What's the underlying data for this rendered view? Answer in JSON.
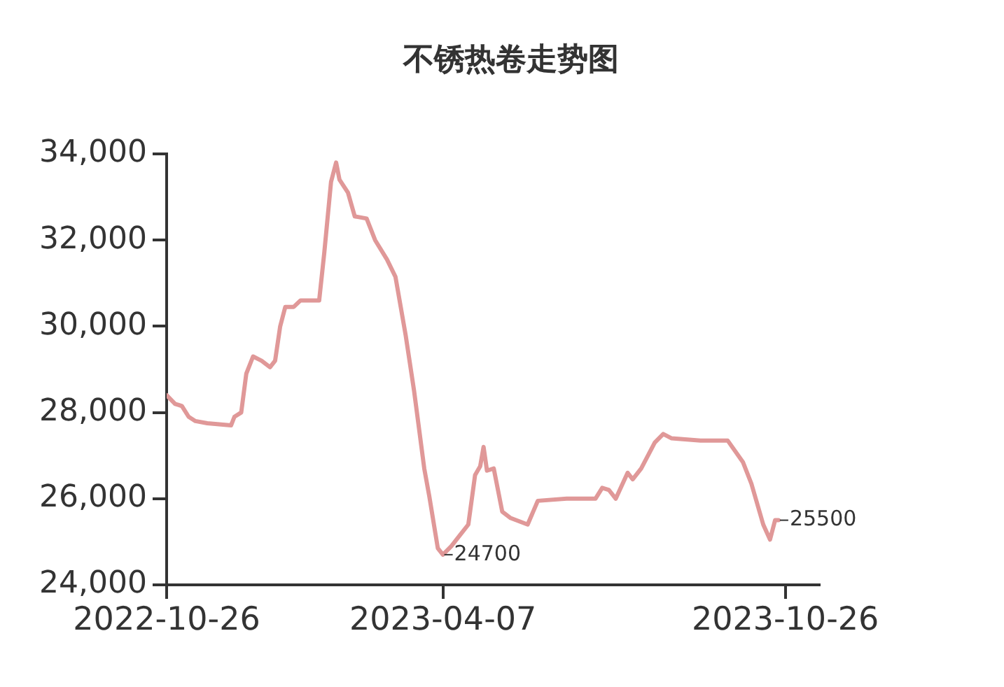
{
  "chart_data": {
    "type": "line",
    "title": "不锈热卷走势图",
    "x": [
      "2022-10-26",
      "2022-10-31",
      "2022-11-04",
      "2022-11-08",
      "2022-11-12",
      "2022-11-19",
      "2022-12-03",
      "2022-12-05",
      "2022-12-09",
      "2022-12-12",
      "2022-12-16",
      "2022-12-21",
      "2022-12-26",
      "2022-12-29",
      "2023-01-01",
      "2023-01-04",
      "2023-01-09",
      "2023-01-13",
      "2023-01-24",
      "2023-01-27",
      "2023-01-31",
      "2023-02-03",
      "2023-02-05",
      "2023-02-10",
      "2023-02-14",
      "2023-02-21",
      "2023-02-26",
      "2023-03-05",
      "2023-03-10",
      "2023-03-16",
      "2023-03-21",
      "2023-03-27",
      "2023-03-30",
      "2023-04-04",
      "2023-04-07",
      "2023-04-12",
      "2023-04-17",
      "2023-04-22",
      "2023-04-26",
      "2023-04-29",
      "2023-05-01",
      "2023-05-03",
      "2023-05-07",
      "2023-05-12",
      "2023-05-17",
      "2023-05-27",
      "2023-06-02",
      "2023-06-19",
      "2023-07-06",
      "2023-07-10",
      "2023-07-14",
      "2023-07-18",
      "2023-07-25",
      "2023-07-28",
      "2023-08-02",
      "2023-08-10",
      "2023-08-15",
      "2023-08-20",
      "2023-09-06",
      "2023-09-22",
      "2023-10-01",
      "2023-10-06",
      "2023-10-13",
      "2023-10-17",
      "2023-10-20",
      "2023-10-22"
    ],
    "series": [
      {
        "color": "#e09898",
        "values": [
          28400,
          28200,
          28150,
          27900,
          27800,
          27750,
          27700,
          27900,
          28000,
          28900,
          29300,
          29200,
          29050,
          29200,
          30000,
          30450,
          30450,
          30600,
          30600,
          31700,
          33350,
          33800,
          33400,
          33100,
          32550,
          32500,
          32000,
          31550,
          31150,
          29800,
          28500,
          26700,
          26050,
          24850,
          24700,
          24900,
          25150,
          25400,
          26550,
          26750,
          27200,
          26650,
          26700,
          25700,
          25550,
          25400,
          25950,
          26000,
          26000,
          26250,
          26200,
          26000,
          26600,
          26450,
          26700,
          27300,
          27500,
          27400,
          27350,
          27350,
          26850,
          26350,
          25400,
          25050,
          25500,
          25500
        ]
      }
    ],
    "xlim": [
      "2022-10-26",
      "2023-11-15"
    ],
    "xticks": [
      "2022-10-26",
      "2023-04-07",
      "2023-10-26"
    ],
    "ylim": [
      24000,
      34000
    ],
    "yticks": [
      {
        "value": 24000,
        "label": "24,000"
      },
      {
        "value": 26000,
        "label": "26,000"
      },
      {
        "value": 28000,
        "label": "28,000"
      },
      {
        "value": 30000,
        "label": "30,000"
      },
      {
        "value": 32000,
        "label": "32,000"
      },
      {
        "value": 34000,
        "label": "34,000"
      }
    ],
    "annotations": [
      {
        "text": "24700",
        "x": "2023-04-07",
        "y": 24700
      },
      {
        "text": "25500",
        "x": "2023-10-22",
        "y": 25500
      }
    ],
    "grid": false,
    "legend": false,
    "marker": "none",
    "line_style": "solid"
  }
}
